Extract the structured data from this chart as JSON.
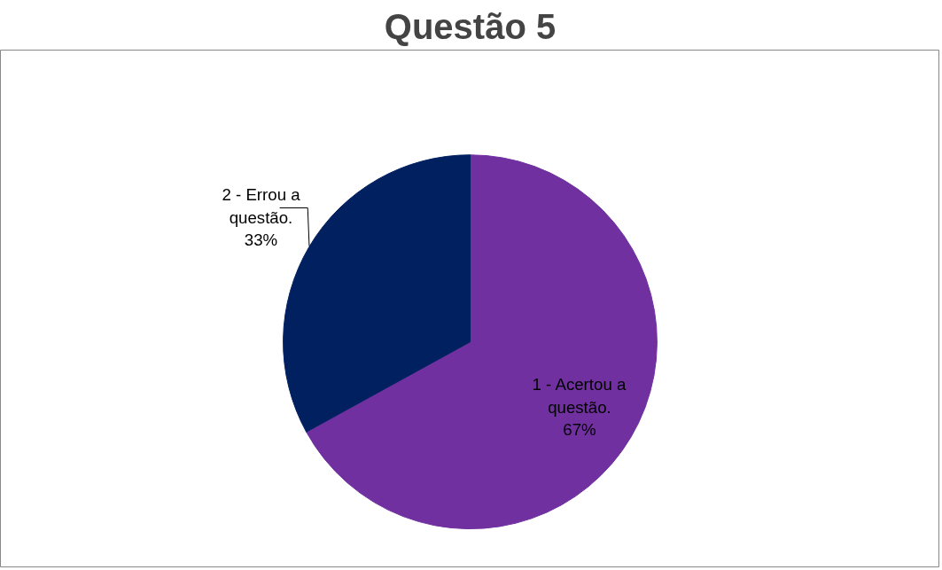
{
  "chart_data": {
    "type": "pie",
    "title": "Questão 5",
    "categories": [
      "1 - Acertou a questão.",
      "2 - Errou a questão."
    ],
    "values": [
      67,
      33
    ],
    "colors": [
      "#7030a0",
      "#002060"
    ],
    "value_labels": [
      "67%",
      "33%"
    ]
  }
}
